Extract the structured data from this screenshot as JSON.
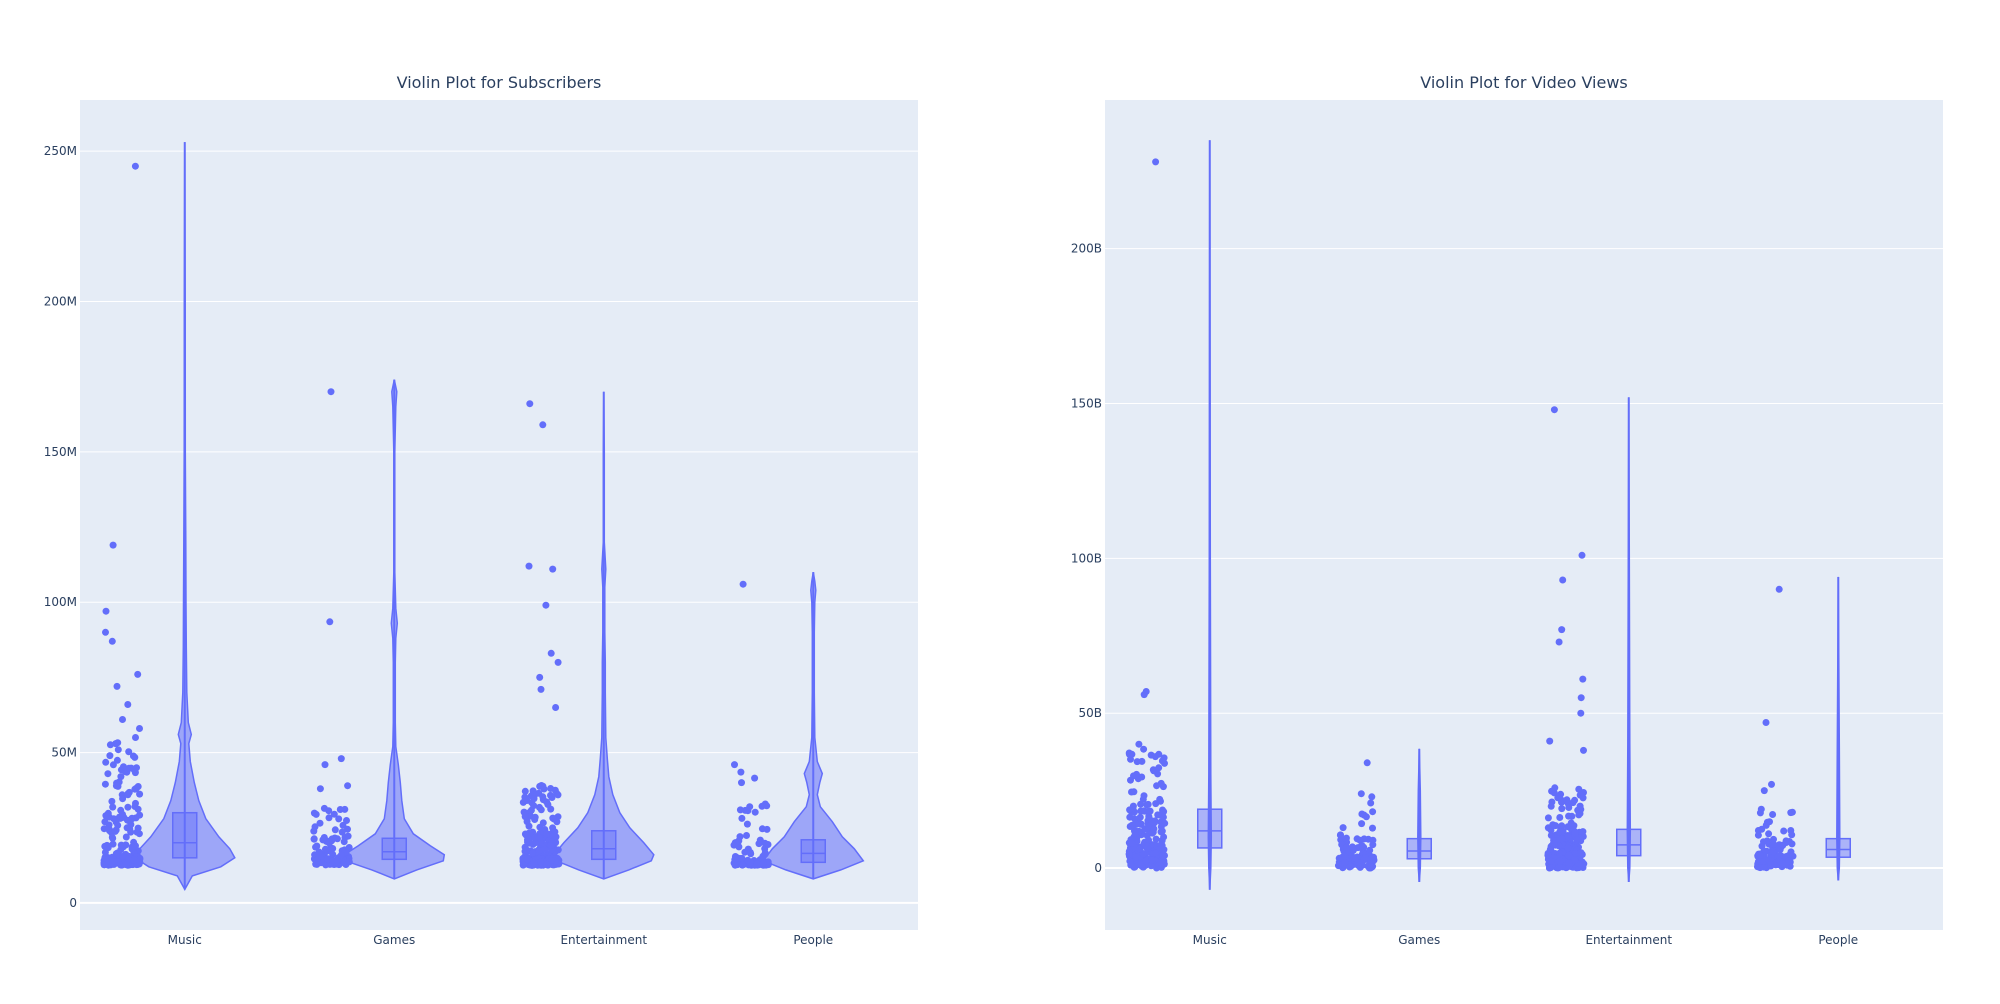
{
  "chart_data": [
    {
      "type": "violin",
      "title": "Violin Plot for Subscribers",
      "categories": [
        "Music",
        "Games",
        "Entertainment",
        "People"
      ],
      "y_ticks": [
        0,
        50000000,
        100000000,
        150000000,
        200000000,
        250000000
      ],
      "y_tick_labels": [
        "0",
        "50M",
        "100M",
        "150M",
        "200M",
        "250M"
      ],
      "ylim": [
        -9000000,
        267000000
      ],
      "show_violin": true,
      "points": "all",
      "grid": true,
      "groups": [
        {
          "category": "Music",
          "min": 12500000,
          "q1": 15000000,
          "median": 20000000,
          "q3": 30000000,
          "max": 245000000,
          "outliers": [
            245000000,
            119000000,
            97000000,
            90000000,
            87000000,
            76000000,
            72000000,
            66000000,
            61000000,
            58000000,
            55000000,
            53000000
          ],
          "density": [
            [
              4500000,
              0.0
            ],
            [
              9000000,
              0.15
            ],
            [
              12000000,
              0.72
            ],
            [
              15000000,
              1.0
            ],
            [
              18000000,
              0.9
            ],
            [
              22000000,
              0.68
            ],
            [
              28000000,
              0.42
            ],
            [
              34000000,
              0.28
            ],
            [
              40000000,
              0.19
            ],
            [
              47000000,
              0.11
            ],
            [
              53000000,
              0.08
            ],
            [
              56000000,
              0.13
            ],
            [
              60000000,
              0.07
            ],
            [
              70000000,
              0.04
            ],
            [
              85000000,
              0.03
            ],
            [
              100000000,
              0.025
            ],
            [
              120000000,
              0.02
            ],
            [
              150000000,
              0.012
            ],
            [
              200000000,
              0.008
            ],
            [
              253000000,
              0.0
            ]
          ]
        },
        {
          "category": "Games",
          "min": 12500000,
          "q1": 14500000,
          "median": 17000000,
          "q3": 21500000,
          "max": 170000000,
          "outliers": [
            170000000,
            93500000,
            48000000,
            46000000,
            39000000,
            38000000
          ],
          "density": [
            [
              8000000,
              0.0
            ],
            [
              11000000,
              0.45
            ],
            [
              14000000,
              0.98
            ],
            [
              16000000,
              1.0
            ],
            [
              19000000,
              0.72
            ],
            [
              23000000,
              0.38
            ],
            [
              28000000,
              0.2
            ],
            [
              34000000,
              0.15
            ],
            [
              40000000,
              0.12
            ],
            [
              46000000,
              0.08
            ],
            [
              52000000,
              0.03
            ],
            [
              60000000,
              0.02
            ],
            [
              80000000,
              0.02
            ],
            [
              88000000,
              0.03
            ],
            [
              93000000,
              0.06
            ],
            [
              98000000,
              0.03
            ],
            [
              110000000,
              0.01
            ],
            [
              150000000,
              0.01
            ],
            [
              165000000,
              0.03
            ],
            [
              170000000,
              0.05
            ],
            [
              174000000,
              0.0
            ]
          ]
        },
        {
          "category": "Entertainment",
          "min": 12500000,
          "q1": 14500000,
          "median": 18000000,
          "q3": 24000000,
          "max": 166000000,
          "outliers": [
            166000000,
            159000000,
            112000000,
            111000000,
            99000000,
            83000000,
            80000000,
            75000000,
            71000000,
            65000000
          ],
          "density": [
            [
              8000000,
              0.0
            ],
            [
              11000000,
              0.5
            ],
            [
              14000000,
              0.95
            ],
            [
              16000000,
              1.0
            ],
            [
              20000000,
              0.8
            ],
            [
              25000000,
              0.52
            ],
            [
              30000000,
              0.32
            ],
            [
              36000000,
              0.18
            ],
            [
              42000000,
              0.1
            ],
            [
              48000000,
              0.07
            ],
            [
              55000000,
              0.04
            ],
            [
              70000000,
              0.03
            ],
            [
              80000000,
              0.03
            ],
            [
              90000000,
              0.02
            ],
            [
              105000000,
              0.02
            ],
            [
              111000000,
              0.04
            ],
            [
              120000000,
              0.01
            ],
            [
              150000000,
              0.01
            ],
            [
              170000000,
              0.0
            ]
          ]
        },
        {
          "category": "People",
          "min": 12500000,
          "q1": 13500000,
          "median": 16500000,
          "q3": 21000000,
          "max": 106000000,
          "outliers": [
            106000000,
            46000000,
            43500000,
            41500000,
            40000000
          ],
          "density": [
            [
              8000000,
              0.0
            ],
            [
              11000000,
              0.55
            ],
            [
              14000000,
              1.0
            ],
            [
              18000000,
              0.82
            ],
            [
              22000000,
              0.58
            ],
            [
              27000000,
              0.38
            ],
            [
              32000000,
              0.14
            ],
            [
              36000000,
              0.08
            ],
            [
              40000000,
              0.13
            ],
            [
              43000000,
              0.18
            ],
            [
              47000000,
              0.08
            ],
            [
              55000000,
              0.03
            ],
            [
              70000000,
              0.02
            ],
            [
              90000000,
              0.02
            ],
            [
              100000000,
              0.03
            ],
            [
              104000000,
              0.05
            ],
            [
              107000000,
              0.03
            ],
            [
              110000000,
              0.0
            ]
          ]
        }
      ]
    },
    {
      "type": "violin",
      "title": "Violin Plot for Video Views",
      "categories": [
        "Music",
        "Games",
        "Entertainment",
        "People"
      ],
      "y_ticks": [
        0,
        50000000000,
        100000000000,
        150000000000,
        200000000000
      ],
      "y_tick_labels": [
        "0",
        "50B",
        "100B",
        "150B",
        "200B"
      ],
      "ylim": [
        -20000000000,
        248000000000
      ],
      "show_violin": true,
      "points": "all",
      "grid": true,
      "groups": [
        {
          "category": "Music",
          "min": 0,
          "q1": 6500000000,
          "median": 12000000000,
          "q3": 19000000000,
          "max": 228000000000,
          "outliers": [
            228000000000,
            57000000000,
            56000000000,
            40000000000,
            36000000000
          ],
          "density": [
            [
              -7000000000,
              0.0
            ],
            [
              0,
              0.02
            ],
            [
              10000000000,
              0.03
            ],
            [
              30000000000,
              0.02
            ],
            [
              100000000000,
              0.01
            ],
            [
              235000000000,
              0.0
            ]
          ]
        },
        {
          "category": "Games",
          "min": 0,
          "q1": 3000000000,
          "median": 5500000000,
          "q3": 9500000000,
          "max": 34000000000,
          "outliers": [
            34000000000,
            24000000000,
            23000000000,
            21000000000
          ],
          "density": [
            [
              -4500000000,
              0.0
            ],
            [
              0,
              0.02
            ],
            [
              10000000000,
              0.03
            ],
            [
              25000000000,
              0.02
            ],
            [
              38500000000,
              0.0
            ]
          ]
        },
        {
          "category": "Entertainment",
          "min": 0,
          "q1": 4000000000,
          "median": 7500000000,
          "q3": 12500000000,
          "max": 148000000000,
          "outliers": [
            148000000000,
            101000000000,
            93000000000,
            77000000000,
            73000000000,
            61000000000,
            55000000000,
            50000000000,
            41000000000,
            38000000000
          ],
          "density": [
            [
              -4500000000,
              0.0
            ],
            [
              0,
              0.02
            ],
            [
              12000000000,
              0.03
            ],
            [
              40000000000,
              0.02
            ],
            [
              100000000000,
              0.01
            ],
            [
              152000000000,
              0.0
            ]
          ]
        },
        {
          "category": "People",
          "min": 0,
          "q1": 3500000000,
          "median": 6000000000,
          "q3": 9500000000,
          "max": 90000000000,
          "outliers": [
            90000000000,
            47000000000,
            27000000000,
            25000000000
          ],
          "density": [
            [
              -4000000000,
              0.0
            ],
            [
              0,
              0.02
            ],
            [
              10000000000,
              0.03
            ],
            [
              40000000000,
              0.02
            ],
            [
              94000000000,
              0.0
            ]
          ]
        }
      ]
    }
  ],
  "colors": {
    "trace": "#636efa",
    "violin_fill": "rgba(99,110,250,0.55)",
    "plot_bg": "#e5ecf6",
    "grid": "#ffffff",
    "text": "#2a3f5f"
  }
}
